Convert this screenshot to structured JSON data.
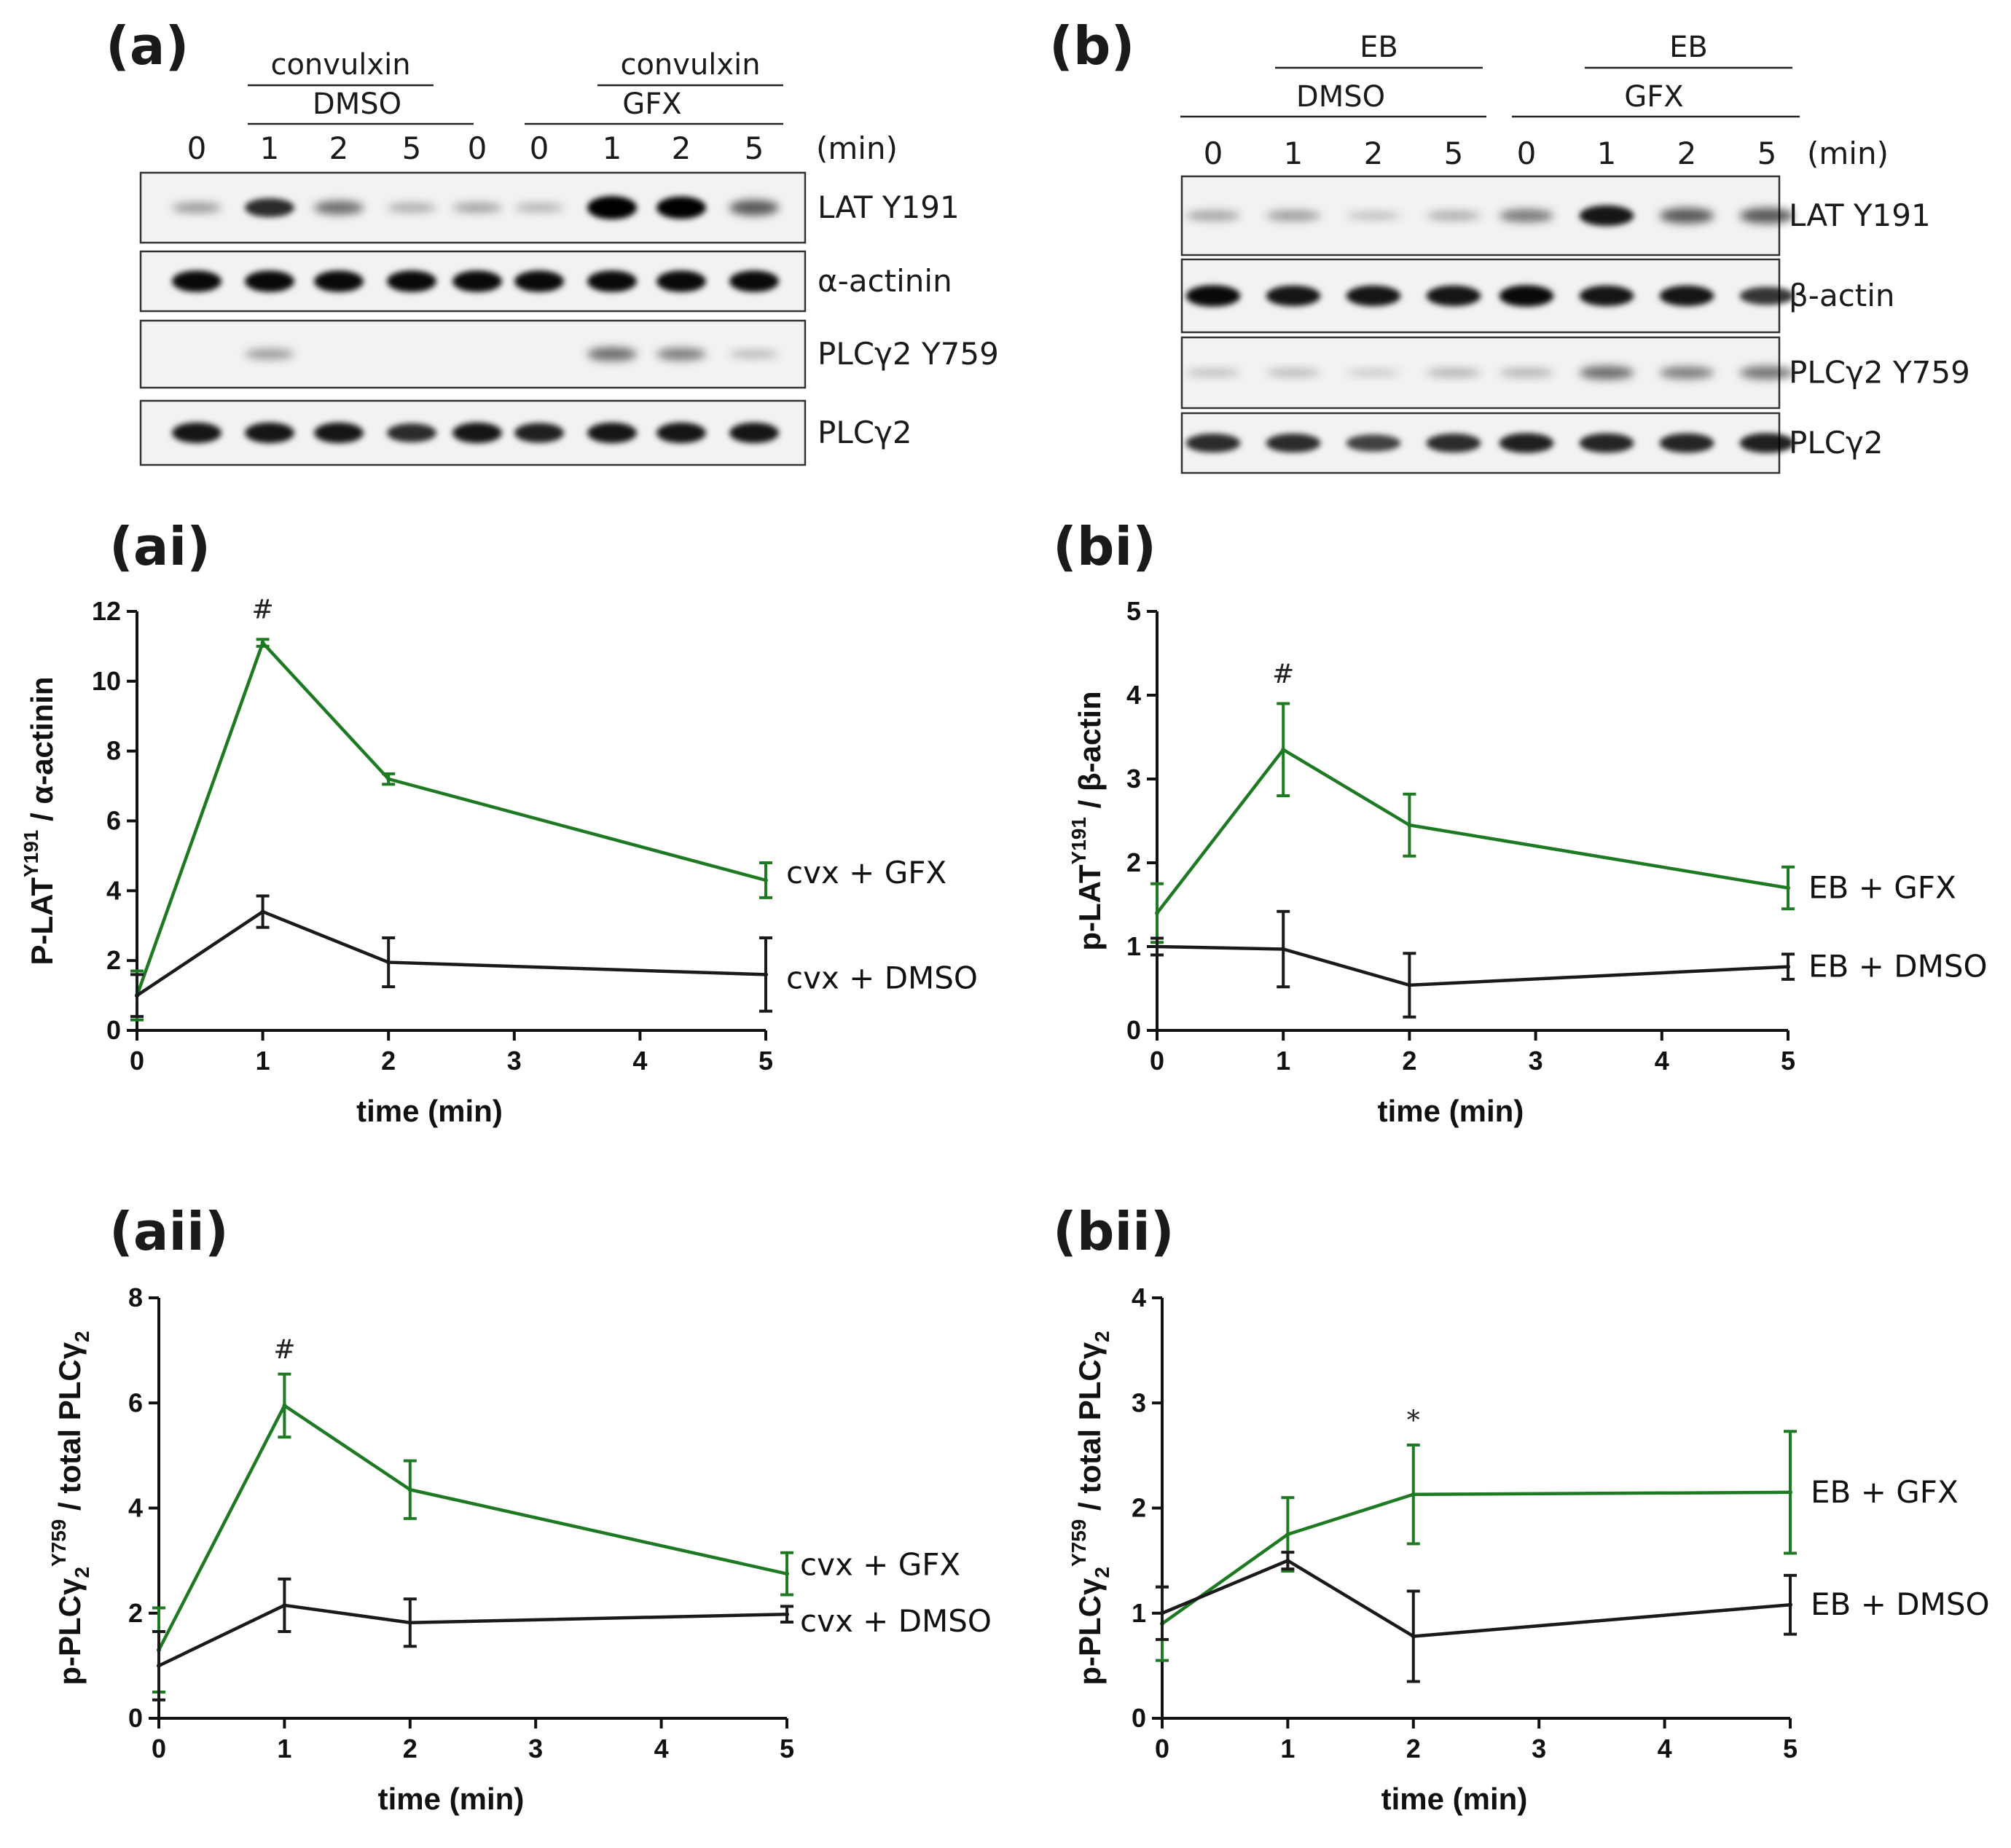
{
  "colors": {
    "gfx": "#1e7a22",
    "dmso": "#1a1a1a"
  },
  "blots": [
    {
      "id": "a",
      "panel": "(a)",
      "groups": [
        {
          "agonist": "convulxin",
          "vehicle": "DMSO"
        },
        {
          "agonist": "convulxin",
          "vehicle": "GFX"
        }
      ],
      "lanes": [
        "0",
        "1",
        "2",
        "5",
        "0",
        "0",
        "1",
        "2",
        "5"
      ],
      "unit": "(min)",
      "rows": [
        "LAT Y191",
        "α-actinin",
        "PLCγ2 Y759",
        "PLCγ2"
      ]
    },
    {
      "id": "b",
      "panel": "(b)",
      "groups": [
        {
          "agonist": "EB",
          "vehicle": "DMSO"
        },
        {
          "agonist": "EB",
          "vehicle": "GFX"
        }
      ],
      "lanes": [
        "0",
        "1",
        "2",
        "5",
        "0",
        "1",
        "2",
        "5"
      ],
      "unit": "(min)",
      "rows": [
        "LAT Y191",
        "β-actin",
        "PLCγ2 Y759",
        "PLCγ2"
      ]
    }
  ],
  "chart_data": [
    {
      "panel": "(ai)",
      "type": "line",
      "xlabel": "time (min)",
      "ylabel_main": "P-LAT",
      "ylabel_sup": "Y191",
      "ylabel_rest": " / α-actinin",
      "xlim": [
        0,
        5
      ],
      "ylim": [
        0,
        12
      ],
      "xticks": [
        0,
        1,
        2,
        3,
        4,
        5
      ],
      "yticks": [
        0,
        2,
        4,
        6,
        8,
        10,
        12
      ],
      "series": [
        {
          "name": "cvx + GFX",
          "color": "#1e7a22",
          "x": [
            0,
            1,
            2,
            5
          ],
          "y": [
            1.0,
            11.1,
            7.2,
            4.3
          ],
          "err": [
            0.7,
            0.1,
            0.15,
            0.5
          ]
        },
        {
          "name": "cvx + DMSO",
          "color": "#1a1a1a",
          "x": [
            0,
            1,
            2,
            5
          ],
          "y": [
            1.0,
            3.4,
            1.95,
            1.6
          ],
          "err": [
            0.6,
            0.45,
            0.7,
            1.05
          ]
        }
      ],
      "annotations": [
        {
          "text": "#",
          "x": 1,
          "y": 11.8
        }
      ]
    },
    {
      "panel": "(bi)",
      "type": "line",
      "xlabel": "time (min)",
      "ylabel_main": "p-LAT",
      "ylabel_sup": "Y191",
      "ylabel_rest": " / β-actin",
      "xlim": [
        0,
        5
      ],
      "ylim": [
        0,
        5
      ],
      "xticks": [
        0,
        1,
        2,
        3,
        4,
        5
      ],
      "yticks": [
        0,
        1,
        2,
        3,
        4,
        5
      ],
      "series": [
        {
          "name": "EB + GFX",
          "color": "#1e7a22",
          "x": [
            0,
            1,
            2,
            5
          ],
          "y": [
            1.4,
            3.35,
            2.45,
            1.7
          ],
          "err": [
            0.35,
            0.55,
            0.37,
            0.25
          ]
        },
        {
          "name": "EB + DMSO",
          "color": "#1a1a1a",
          "x": [
            0,
            1,
            2,
            5
          ],
          "y": [
            1.0,
            0.97,
            0.54,
            0.76
          ],
          "err": [
            0.1,
            0.45,
            0.38,
            0.15
          ]
        }
      ],
      "annotations": [
        {
          "text": "#",
          "x": 1,
          "y": 4.15
        }
      ]
    },
    {
      "panel": "(aii)",
      "type": "line",
      "xlabel": "time (min)",
      "ylabel_main": "p-PLCγ",
      "ylabel_sub": "2",
      "ylabel_sup": "Y759",
      "ylabel_rest": " / total PLCγ",
      "ylabel_sub2": "2",
      "xlim": [
        0,
        5
      ],
      "ylim": [
        0,
        8
      ],
      "xticks": [
        0,
        1,
        2,
        3,
        4,
        5
      ],
      "yticks": [
        0,
        2,
        4,
        6,
        8
      ],
      "series": [
        {
          "name": "cvx + GFX",
          "color": "#1e7a22",
          "x": [
            0,
            1,
            2,
            5
          ],
          "y": [
            1.3,
            5.95,
            4.35,
            2.75
          ],
          "err": [
            0.8,
            0.6,
            0.55,
            0.4
          ]
        },
        {
          "name": "cvx + DMSO",
          "color": "#1a1a1a",
          "x": [
            0,
            1,
            2,
            5
          ],
          "y": [
            1.0,
            2.15,
            1.82,
            1.98
          ],
          "err": [
            0.65,
            0.5,
            0.45,
            0.15
          ]
        }
      ],
      "annotations": [
        {
          "text": "#",
          "x": 1,
          "y": 6.85
        }
      ]
    },
    {
      "panel": "(bii)",
      "type": "line",
      "xlabel": "time (min)",
      "ylabel_main": "p-PLCγ",
      "ylabel_sub": "2",
      "ylabel_sup": "Y759",
      "ylabel_rest": " / total PLCγ",
      "ylabel_sub2": "2",
      "xlim": [
        0,
        5
      ],
      "ylim": [
        0,
        4
      ],
      "xticks": [
        0,
        1,
        2,
        3,
        4,
        5
      ],
      "yticks": [
        0,
        1,
        2,
        3,
        4
      ],
      "series": [
        {
          "name": "EB + GFX",
          "color": "#1e7a22",
          "x": [
            0,
            1,
            2,
            5
          ],
          "y": [
            0.9,
            1.75,
            2.13,
            2.15
          ],
          "err": [
            0.35,
            0.35,
            0.47,
            0.58
          ]
        },
        {
          "name": "EB + DMSO",
          "color": "#1a1a1a",
          "x": [
            0,
            1,
            2,
            5
          ],
          "y": [
            1.0,
            1.5,
            0.78,
            1.08
          ],
          "err": [
            0.25,
            0.08,
            0.43,
            0.28
          ]
        }
      ],
      "annotations": [
        {
          "text": "*",
          "x": 2,
          "y": 2.75
        }
      ]
    }
  ]
}
